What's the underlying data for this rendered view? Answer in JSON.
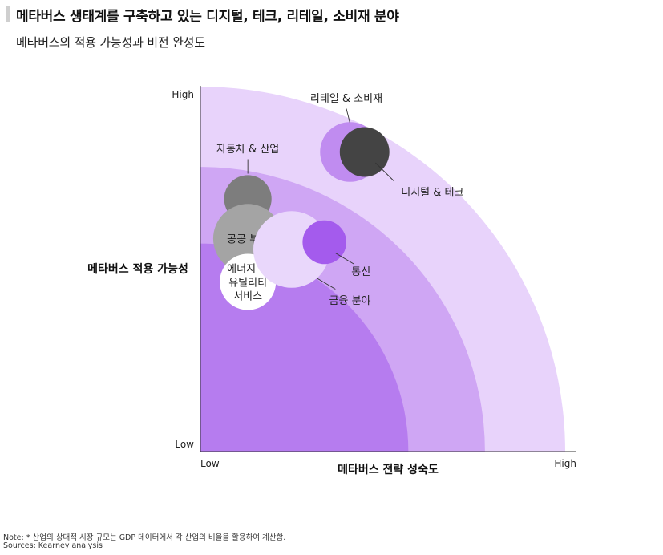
{
  "title": "메타버스 생태계를 구축하고 있는 디지털, 테크, 리테일, 소비재 분야",
  "subtitle": "메타버스의 적용 가능성과 비전 완성도",
  "footer": {
    "note": "Note: * 산업의 상대적 시장 규모는 GDP 데이터에서 각 산업의 비율을 활용하여 계산함.",
    "sources": "Sources: Kearney analysis"
  },
  "chart_data": {
    "type": "bubble",
    "xlabel": "메타버스 전략 성숙도",
    "ylabel": "메타버스 적용 가능성",
    "x_ticks": [
      "Low",
      "High"
    ],
    "y_ticks": [
      "High",
      "Low"
    ],
    "xlim": [
      0,
      100
    ],
    "ylim": [
      0,
      100
    ],
    "bands": [
      {
        "radius": 100,
        "color": "#e8d3fb"
      },
      {
        "radius": 78,
        "color": "#cfa6f4"
      },
      {
        "radius": 57,
        "color": "#b67cef"
      }
    ],
    "points": [
      {
        "label": "리테일 & 소비재",
        "x": 41,
        "y": 83,
        "r": 8.2,
        "color": "#c08cf0",
        "label_lines": [],
        "label_color": "#222"
      },
      {
        "label": "디지털 & 테크",
        "x": 45,
        "y": 83,
        "r": 6.8,
        "color": "#444444",
        "label_lines": [],
        "label_color": "#222"
      },
      {
        "label": "자동차 & 산업",
        "x": 13,
        "y": 70,
        "r": 6.5,
        "color": "#7d7d7d",
        "label_lines": [],
        "label_color": "#222"
      },
      {
        "label": "공공 부문",
        "x": 13,
        "y": 59,
        "r": 9.5,
        "color": "#a4a4a4",
        "label_lines": [
          "공공 부문"
        ],
        "label_color": "#1a1a1a"
      },
      {
        "label": "에너지 및 유틸리티 서비스",
        "x": 13,
        "y": 47,
        "r": 7.7,
        "color": "#ffffff",
        "label_lines": [
          "에너지 및",
          "유틸리티",
          "서비스"
        ],
        "label_color": "#222"
      },
      {
        "label": "금융 분야",
        "x": 25,
        "y": 56,
        "r": 10.5,
        "color": "#e9d7fb",
        "label_lines": [],
        "label_color": "#222"
      },
      {
        "label": "통신",
        "x": 34,
        "y": 58,
        "r": 6.0,
        "color": "#a45bed",
        "label_lines": [],
        "label_color": "#222"
      }
    ],
    "annotations": [
      {
        "text": "리테일 & 소비재",
        "x": 40,
        "y": 98,
        "anchor": "middle",
        "line": [
          [
            40,
            95
          ],
          [
            41,
            91
          ]
        ]
      },
      {
        "text": "디지털 & 테크",
        "x": 55,
        "y": 72,
        "anchor": "start",
        "line": [
          [
            48,
            80
          ],
          [
            53,
            75
          ]
        ]
      },
      {
        "text": "자동차 & 산업",
        "x": 13,
        "y": 84,
        "anchor": "middle",
        "line": [
          [
            13,
            81
          ],
          [
            13,
            77
          ]
        ]
      },
      {
        "text": "통신",
        "x": 44,
        "y": 50,
        "anchor": "middle",
        "line": [
          [
            37,
            55
          ],
          [
            42,
            52
          ]
        ]
      },
      {
        "text": "금융 분야",
        "x": 41,
        "y": 42,
        "anchor": "middle",
        "line": [
          [
            32,
            48
          ],
          [
            37,
            45
          ]
        ]
      }
    ]
  }
}
